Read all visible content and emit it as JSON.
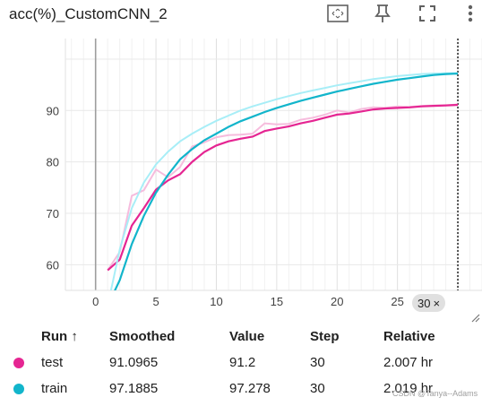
{
  "title": "acc(%)_CustomCNN_2",
  "toolbar": {
    "icons": [
      "fit-domain-icon",
      "pin-icon",
      "fullscreen-icon",
      "more-vert-icon"
    ]
  },
  "chart_data": {
    "type": "line",
    "title": "",
    "xlabel": "",
    "ylabel": "",
    "xlim": [
      -2.5,
      32
    ],
    "ylim": [
      55,
      104
    ],
    "x_ticks": [
      0,
      5,
      10,
      15,
      20,
      25,
      30
    ],
    "y_ticks": [
      60,
      70,
      80,
      90
    ],
    "grid": true,
    "current_step": 30,
    "series": [
      {
        "name": "test",
        "color": "#e52592",
        "raw_color": "#f6bcdd",
        "x": [
          1,
          2,
          3,
          4,
          5,
          6,
          7,
          8,
          9,
          10,
          11,
          12,
          13,
          14,
          15,
          16,
          17,
          18,
          19,
          20,
          21,
          22,
          23,
          24,
          25,
          26,
          27,
          28,
          29,
          30
        ],
        "raw": [
          58.9,
          62.5,
          73.4,
          74.5,
          78.5,
          77.0,
          79.0,
          83.0,
          83.8,
          84.8,
          85.2,
          85.3,
          85.5,
          87.5,
          87.3,
          87.4,
          88.2,
          88.6,
          89.2,
          90.0,
          89.6,
          90.3,
          90.6,
          90.5,
          90.8,
          90.7,
          90.9,
          91.0,
          91.0,
          91.2
        ],
        "smoothed": [
          58.9,
          61.0,
          67.6,
          71.0,
          74.6,
          76.4,
          77.6,
          80.0,
          81.9,
          83.2,
          84.0,
          84.5,
          84.9,
          86.0,
          86.5,
          86.9,
          87.5,
          88.0,
          88.6,
          89.2,
          89.4,
          89.8,
          90.2,
          90.4,
          90.5,
          90.6,
          90.8,
          90.9,
          91.0,
          91.0965
        ]
      },
      {
        "name": "train",
        "color": "#12b5cb",
        "raw_color": "#a8eef7",
        "x": [
          1,
          2,
          3,
          4,
          5,
          6,
          7,
          8,
          9,
          10,
          11,
          12,
          13,
          14,
          15,
          16,
          17,
          18,
          19,
          20,
          21,
          22,
          23,
          24,
          25,
          26,
          27,
          28,
          29,
          30
        ],
        "raw": [
          52.0,
          63.0,
          71.0,
          76.0,
          79.5,
          82.0,
          84.0,
          85.5,
          86.8,
          88.0,
          89.0,
          90.0,
          90.8,
          91.5,
          92.2,
          92.8,
          93.4,
          93.9,
          94.4,
          94.9,
          95.3,
          95.7,
          96.1,
          96.4,
          96.7,
          96.9,
          97.1,
          97.2,
          97.25,
          97.278
        ],
        "smoothed": [
          52.0,
          57.0,
          64.0,
          69.5,
          74.0,
          77.5,
          80.5,
          82.5,
          84.2,
          85.5,
          86.8,
          87.9,
          88.8,
          89.7,
          90.5,
          91.2,
          91.9,
          92.5,
          93.1,
          93.7,
          94.2,
          94.7,
          95.2,
          95.6,
          96.0,
          96.3,
          96.6,
          96.9,
          97.1,
          97.1885
        ]
      }
    ]
  },
  "step_pill": {
    "label": "30",
    "close": "×"
  },
  "table": {
    "headers": {
      "run": "Run ↑",
      "smoothed": "Smoothed",
      "value": "Value",
      "step": "Step",
      "relative": "Relative"
    },
    "rows": [
      {
        "run": "test",
        "smoothed": "91.0965",
        "value": "91.2",
        "step": "30",
        "relative": "2.007 hr",
        "color": "#e52592"
      },
      {
        "run": "train",
        "smoothed": "97.1885",
        "value": "97.278",
        "step": "30",
        "relative": "2.019 hr",
        "color": "#12b5cb"
      }
    ]
  },
  "watermark": "CSDN @Tanya--Adams"
}
